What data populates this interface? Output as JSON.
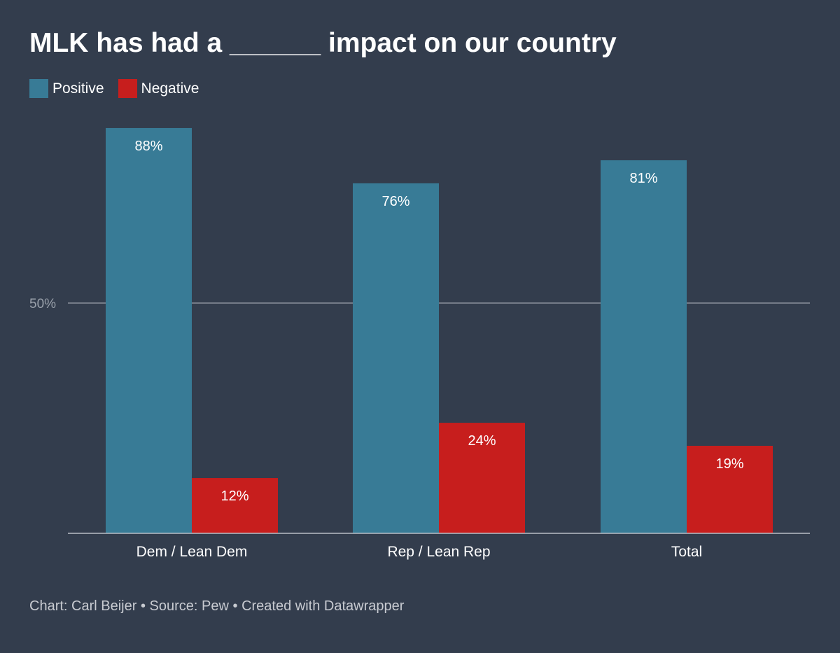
{
  "title": "MLK has had a ______ impact on our country",
  "legend": [
    {
      "label": "Positive",
      "color": "#387b96"
    },
    {
      "label": "Negative",
      "color": "#c71e1d"
    }
  ],
  "footer": {
    "chart_credit": "Chart: Carl Beijer",
    "separator_1": "•",
    "source": "Source: Pew",
    "separator_2": "•",
    "created_with": "Created with Datawrapper"
  },
  "chart_data": {
    "type": "bar",
    "title": "MLK has had a ______ impact on our country",
    "categories": [
      "Dem / Lean Dem",
      "Rep / Lean Rep",
      "Total"
    ],
    "series": [
      {
        "name": "Positive",
        "values": [
          88,
          76,
          81
        ],
        "labels": [
          "88%",
          "76%",
          "81%"
        ],
        "color": "#387b96"
      },
      {
        "name": "Negative",
        "values": [
          12,
          24,
          19
        ],
        "labels": [
          "12%",
          "24%",
          "19%"
        ],
        "color": "#c71e1d"
      }
    ],
    "ylim": [
      0,
      100
    ],
    "yticks": [
      {
        "value": 50,
        "label": "50%"
      }
    ],
    "xlabel": "",
    "ylabel": "",
    "legend_position": "top-left",
    "grid": true
  }
}
